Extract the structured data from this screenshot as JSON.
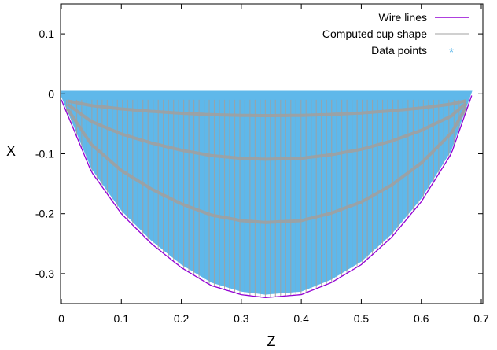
{
  "chart_data": {
    "type": "scatter",
    "xlabel": "Z",
    "ylabel": "X",
    "xlim": [
      0,
      0.7
    ],
    "ylim": [
      -0.35,
      0.15
    ],
    "x_ticks": [
      "0",
      "0.1",
      "0.2",
      "0.3",
      "0.4",
      "0.5",
      "0.6",
      "0.7"
    ],
    "y_ticks": [
      "0.1",
      "0",
      "-0.1",
      "-0.2",
      "-0.3"
    ],
    "legend_position": "top-right",
    "grid": false,
    "series": [
      {
        "name": "Wire lines",
        "kind": "line",
        "color": "#9400d3"
      },
      {
        "name": "Computed cup shape",
        "kind": "mesh",
        "color": "#a0a0a0"
      },
      {
        "name": "Data points",
        "kind": "points",
        "color": "#56b4e9"
      }
    ],
    "cup_profile": {
      "z": [
        0.0,
        0.05,
        0.1,
        0.15,
        0.2,
        0.25,
        0.3,
        0.34,
        0.4,
        0.45,
        0.5,
        0.55,
        0.6,
        0.65,
        0.685
      ],
      "x": [
        -0.01,
        -0.13,
        -0.2,
        -0.25,
        -0.29,
        -0.32,
        -0.335,
        -0.34,
        -0.335,
        -0.315,
        -0.285,
        -0.24,
        -0.18,
        -0.1,
        0.0
      ]
    }
  }
}
